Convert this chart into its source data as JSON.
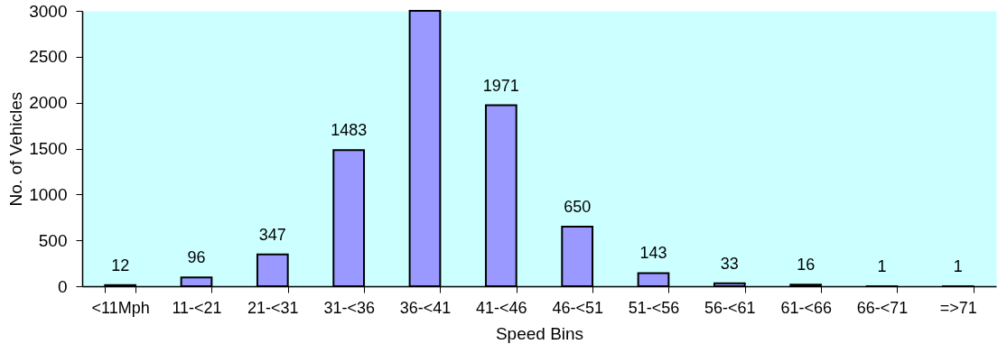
{
  "chart_data": {
    "type": "bar",
    "xlabel": "Speed Bins",
    "ylabel": "No. of Vehicles",
    "categories": [
      "<11Mph",
      "11-<21",
      "21-<31",
      "31-<36",
      "36-<41",
      "41-<46",
      "46-<51",
      "51-<56",
      "56-<61",
      "61-<66",
      "66-<71",
      "=>71"
    ],
    "values": [
      12,
      96,
      347,
      1483,
      3000,
      1971,
      650,
      143,
      33,
      16,
      1,
      1
    ],
    "value_labels": [
      "12",
      "96",
      "347",
      "1483",
      null,
      "1971",
      "650",
      "143",
      "33",
      "16",
      "1",
      "1"
    ],
    "color": "#9999ff",
    "ylim": [
      0,
      3000
    ],
    "yticks": [
      0,
      500,
      1000,
      1500,
      2000,
      2500,
      3000
    ],
    "grid": false
  }
}
